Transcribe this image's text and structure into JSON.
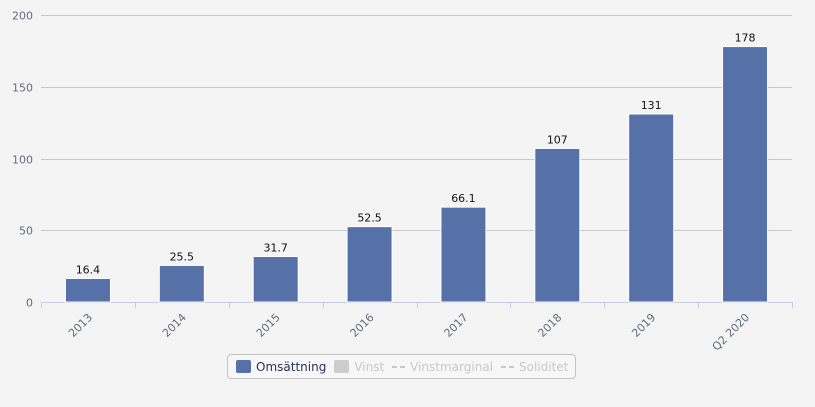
{
  "chart_data": {
    "type": "bar",
    "categories": [
      "2013",
      "2014",
      "2015",
      "2016",
      "2017",
      "2018",
      "2019",
      "Q2 2020"
    ],
    "series": [
      {
        "name": "Omsättning",
        "values": [
          16.4,
          25.5,
          31.7,
          52.5,
          66.1,
          107,
          131,
          178
        ],
        "color": "#5670a8"
      }
    ],
    "data_labels": [
      "16.4",
      "25.5",
      "31.7",
      "52.5",
      "66.1",
      "107",
      "131",
      "178"
    ],
    "ylim": [
      0,
      200
    ],
    "yticks": [
      0,
      50,
      100,
      150,
      200
    ],
    "grid": true,
    "legend_position": "bottom-center"
  },
  "legend": {
    "items": [
      {
        "label": "Omsättning",
        "kind": "bar",
        "color": "#5670a8",
        "active": true
      },
      {
        "label": "Vinst",
        "kind": "bar",
        "color": "#cccccc",
        "active": false
      },
      {
        "label": "Vinstmarginal",
        "kind": "dash",
        "color": "#cccccc",
        "active": false
      },
      {
        "label": "Soliditet",
        "kind": "dash",
        "color": "#cccccc",
        "active": false
      }
    ]
  },
  "colors": {
    "background": "#f4f4f4",
    "grid": "#c8c8c8",
    "axis": "#c8cce0",
    "tick_text": "#606a80"
  }
}
